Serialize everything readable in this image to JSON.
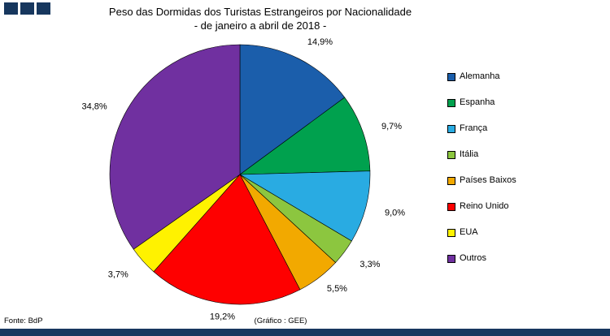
{
  "title": {
    "line1": "Peso das Dormidas dos Turistas Estrangeiros por Nacionalidade",
    "line2": "- de janeiro a abril de 2018 -"
  },
  "footer": {
    "source": "Fonte: BdP",
    "credit": "(Gráfico : GEE)"
  },
  "colors": {
    "accent_navy": "#17375E"
  },
  "chart_data": {
    "type": "pie",
    "title": "Peso das Dormidas dos Turistas Estrangeiros por Nacionalidade",
    "subtitle": "- de janeiro a abril de 2018 -",
    "legend_position": "right",
    "start_angle": "top-clockwise",
    "slices": [
      {
        "label": "Alemanha",
        "value": 14.9,
        "display": "14,9%",
        "color": "#1B5EAB"
      },
      {
        "label": "Espanha",
        "value": 9.7,
        "display": "9,7%",
        "color": "#00A14E"
      },
      {
        "label": "França",
        "value": 9.0,
        "display": "9,0%",
        "color": "#29ABE2"
      },
      {
        "label": "Itália",
        "value": 3.3,
        "display": "3,3%",
        "color": "#8CC63F"
      },
      {
        "label": "Países Baixos",
        "value": 5.5,
        "display": "5,5%",
        "color": "#F2A900"
      },
      {
        "label": "Reino Unido",
        "value": 19.2,
        "display": "19,2%",
        "color": "#FE0000"
      },
      {
        "label": "EUA",
        "value": 3.7,
        "display": "3,7%",
        "color": "#FFF200"
      },
      {
        "label": "Outros",
        "value": 34.8,
        "display": "34,8%",
        "color": "#7030A0"
      }
    ]
  }
}
